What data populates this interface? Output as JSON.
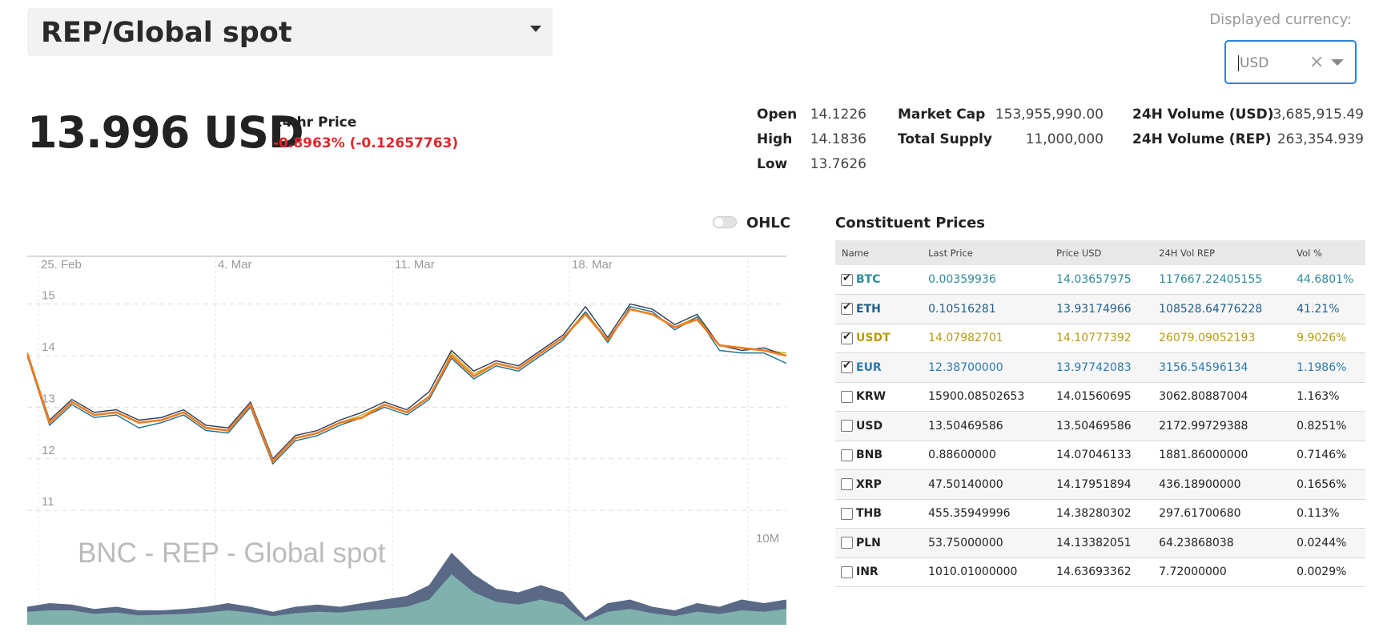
{
  "asset_select": {
    "label": "REP/Global spot"
  },
  "currency": {
    "label": "Displayed currency:",
    "value": "USD",
    "clear_glyph": "×"
  },
  "price": {
    "value": "13.996 USD",
    "label": "24 hr Price",
    "change": "-0.8963% (-0.12657763)"
  },
  "stats": {
    "open": {
      "label": "Open",
      "value": "14.1226"
    },
    "high": {
      "label": "High",
      "value": "14.1836"
    },
    "low": {
      "label": "Low",
      "value": "13.7626"
    },
    "market_cap": {
      "label": "Market Cap",
      "value": "153,955,990.00"
    },
    "total_supply": {
      "label": "Total Supply",
      "value": "11,000,000"
    },
    "vol_usd": {
      "label": "24H Volume (USD)",
      "value": "3,685,915.49"
    },
    "vol_rep": {
      "label": "24H Volume (REP)",
      "value": "263,354.939"
    }
  },
  "ohlc": {
    "label": "OHLC",
    "enabled": false
  },
  "chart_data": {
    "type": "line",
    "title": "",
    "watermark": "BNC - REP - Global spot",
    "x_ticks": [
      "25. Feb",
      "4. Mar",
      "11. Mar",
      "18. Mar"
    ],
    "y_ticks": [
      "15",
      "14",
      "13",
      "12",
      "11"
    ],
    "ylim": [
      10.6,
      15.8
    ],
    "volume_label": "10M",
    "series": [
      {
        "color": "#f37b1d",
        "values": [
          14.05,
          12.7,
          13.1,
          12.85,
          12.9,
          12.7,
          12.75,
          12.9,
          12.6,
          12.55,
          13.05,
          11.95,
          12.4,
          12.5,
          12.7,
          12.8,
          13.05,
          12.9,
          13.2,
          14.0,
          13.6,
          13.85,
          13.75,
          14.05,
          14.35,
          14.8,
          14.3,
          14.9,
          14.8,
          14.55,
          14.7,
          14.2,
          14.15,
          14.1,
          14.0
        ]
      },
      {
        "color": "#1c6e8c",
        "values": [
          14.0,
          12.65,
          13.05,
          12.8,
          12.85,
          12.6,
          12.7,
          12.85,
          12.55,
          12.5,
          13.0,
          11.9,
          12.35,
          12.45,
          12.65,
          12.8,
          13.0,
          12.85,
          13.15,
          13.95,
          13.55,
          13.8,
          13.7,
          14.0,
          14.3,
          14.85,
          14.25,
          14.95,
          14.85,
          14.5,
          14.75,
          14.1,
          14.05,
          14.05,
          13.85
        ]
      },
      {
        "color": "#2a3a5a",
        "values": [
          14.05,
          12.75,
          13.15,
          12.9,
          12.95,
          12.75,
          12.8,
          12.95,
          12.65,
          12.6,
          13.1,
          12.0,
          12.45,
          12.55,
          12.75,
          12.9,
          13.1,
          12.95,
          13.3,
          14.1,
          13.7,
          13.9,
          13.8,
          14.1,
          14.4,
          14.95,
          14.35,
          15.0,
          14.9,
          14.6,
          14.8,
          14.2,
          14.1,
          14.15,
          14.0
        ]
      },
      {
        "color": "#c9b31a",
        "values": [
          14.0,
          12.7,
          13.1,
          12.85,
          12.9,
          12.7,
          12.75,
          12.9,
          12.6,
          12.55,
          13.05,
          11.95,
          12.4,
          12.5,
          12.7,
          12.85,
          13.05,
          12.9,
          13.2,
          14.05,
          13.65,
          13.85,
          13.75,
          14.05,
          14.35,
          14.85,
          14.3,
          14.9,
          14.8,
          14.55,
          14.75,
          14.2,
          14.15,
          14.1,
          14.05
        ]
      }
    ],
    "volume_series": [
      {
        "color": "#5a6a86",
        "values": [
          0.25,
          0.3,
          0.28,
          0.22,
          0.25,
          0.2,
          0.2,
          0.22,
          0.25,
          0.3,
          0.25,
          0.18,
          0.25,
          0.28,
          0.25,
          0.3,
          0.35,
          0.4,
          0.55,
          1.0,
          0.7,
          0.5,
          0.45,
          0.55,
          0.45,
          0.1,
          0.3,
          0.35,
          0.25,
          0.2,
          0.3,
          0.25,
          0.35,
          0.3,
          0.35
        ]
      },
      {
        "color": "#7fb2ad",
        "values": [
          0.18,
          0.2,
          0.2,
          0.15,
          0.17,
          0.13,
          0.14,
          0.15,
          0.17,
          0.2,
          0.17,
          0.12,
          0.16,
          0.18,
          0.17,
          0.2,
          0.22,
          0.25,
          0.35,
          0.7,
          0.45,
          0.32,
          0.28,
          0.35,
          0.28,
          0.05,
          0.18,
          0.22,
          0.16,
          0.12,
          0.18,
          0.15,
          0.2,
          0.18,
          0.22
        ]
      }
    ]
  },
  "constituents": {
    "title": "Constituent Prices",
    "headers": [
      "Name",
      "Last Price",
      "Price USD",
      "24H Vol REP",
      "Vol %"
    ],
    "rows": [
      {
        "checked": true,
        "color": "#2f8a9a",
        "name": "BTC",
        "last": "0.00359936",
        "usd": "14.03657975",
        "vol": "117667.22405155",
        "pct": "44.6801%"
      },
      {
        "checked": true,
        "color": "#1f5f8a",
        "name": "ETH",
        "last": "0.10516281",
        "usd": "13.93174966",
        "vol": "108528.64776228",
        "pct": "41.21%"
      },
      {
        "checked": true,
        "color": "#b89a10",
        "name": "USDT",
        "last": "14.07982701",
        "usd": "14.10777392",
        "vol": "26079.09052193",
        "pct": "9.9026%"
      },
      {
        "checked": true,
        "color": "#2a7ab0",
        "name": "EUR",
        "last": "12.38700000",
        "usd": "13.97742083",
        "vol": "3156.54596134",
        "pct": "1.1986%"
      },
      {
        "checked": false,
        "color": "#222222",
        "name": "KRW",
        "last": "15900.08502653",
        "usd": "14.01560695",
        "vol": "3062.80887004",
        "pct": "1.163%"
      },
      {
        "checked": false,
        "color": "#222222",
        "name": "USD",
        "last": "13.50469586",
        "usd": "13.50469586",
        "vol": "2172.99729388",
        "pct": "0.8251%"
      },
      {
        "checked": false,
        "color": "#222222",
        "name": "BNB",
        "last": "0.88600000",
        "usd": "14.07046133",
        "vol": "1881.86000000",
        "pct": "0.7146%"
      },
      {
        "checked": false,
        "color": "#222222",
        "name": "XRP",
        "last": "47.50140000",
        "usd": "14.17951894",
        "vol": "436.18900000",
        "pct": "0.1656%"
      },
      {
        "checked": false,
        "color": "#222222",
        "name": "THB",
        "last": "455.35949996",
        "usd": "14.38280302",
        "vol": "297.61700680",
        "pct": "0.113%"
      },
      {
        "checked": false,
        "color": "#222222",
        "name": "PLN",
        "last": "53.75000000",
        "usd": "14.13382051",
        "vol": "64.23868038",
        "pct": "0.0244%"
      },
      {
        "checked": false,
        "color": "#222222",
        "name": "INR",
        "last": "1010.01000000",
        "usd": "14.63693362",
        "vol": "7.72000000",
        "pct": "0.0029%"
      }
    ]
  }
}
